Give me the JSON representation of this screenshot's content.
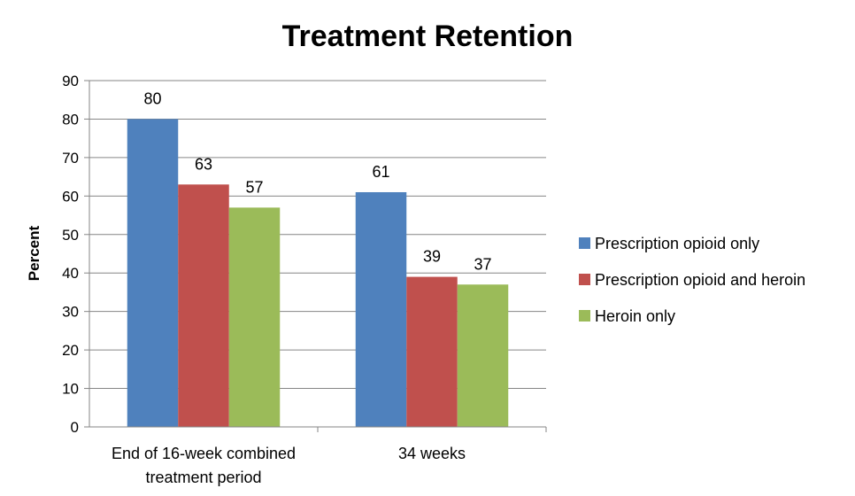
{
  "chart_data": {
    "type": "bar",
    "title": "Treatment Retention",
    "xlabel": "",
    "ylabel": "Percent",
    "ylim": [
      0,
      90
    ],
    "yticks": [
      "0",
      "10",
      "20",
      "30",
      "40",
      "50",
      "60",
      "70",
      "80",
      "90"
    ],
    "categories": [
      [
        "End of 16-week combined",
        "treatment period"
      ],
      [
        "34 weeks"
      ]
    ],
    "series": [
      {
        "name": "Prescription opioid only",
        "color": "#4f81bd",
        "values": [
          80,
          61
        ]
      },
      {
        "name": "Prescription opioid and heroin",
        "color": "#c0504d",
        "values": [
          63,
          39
        ]
      },
      {
        "name": "Heroin only",
        "color": "#9bbb59",
        "values": [
          57,
          37
        ]
      }
    ],
    "grid": true,
    "legend": "right"
  }
}
